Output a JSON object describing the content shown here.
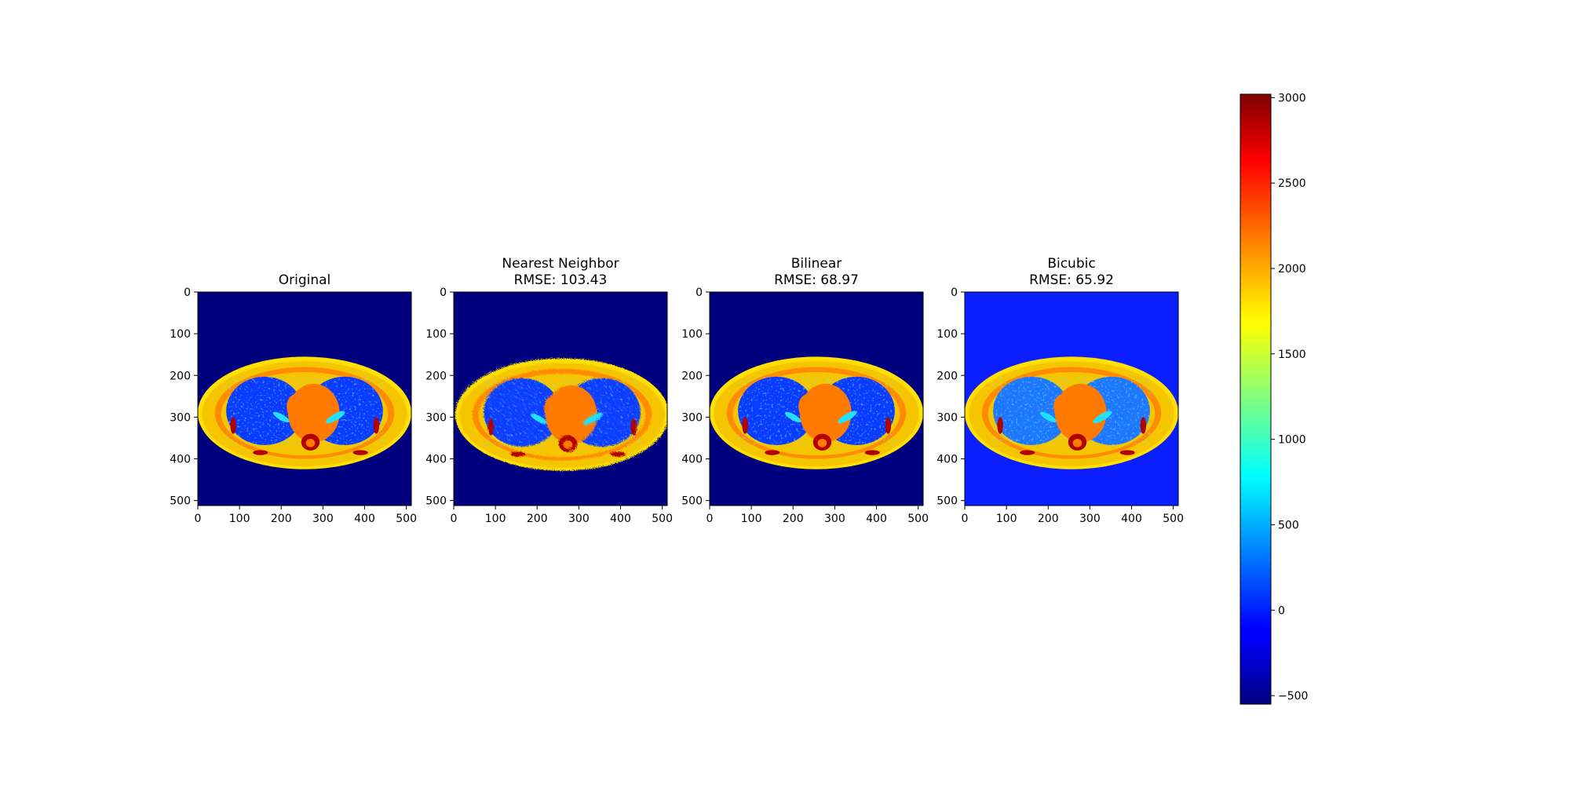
{
  "chart_data": [
    {
      "type": "heatmap",
      "panel": "original",
      "title": [
        "Original"
      ],
      "xticks": [
        0,
        100,
        200,
        300,
        400,
        500
      ],
      "yticks": [
        0,
        100,
        200,
        300,
        400,
        500
      ],
      "xlim": [
        0,
        512
      ],
      "ylim": [
        512,
        0
      ],
      "background_color": "#00007f",
      "edge_style": "smooth",
      "colormap": "jet"
    },
    {
      "type": "heatmap",
      "panel": "nearest",
      "title": [
        "Nearest Neighbor",
        "RMSE: 103.43"
      ],
      "rmse": 103.43,
      "xticks": [
        0,
        100,
        200,
        300,
        400,
        500
      ],
      "yticks": [
        0,
        100,
        200,
        300,
        400,
        500
      ],
      "xlim": [
        0,
        512
      ],
      "ylim": [
        512,
        0
      ],
      "background_color": "#00007f",
      "edge_style": "jagged",
      "colormap": "jet"
    },
    {
      "type": "heatmap",
      "panel": "bilinear",
      "title": [
        "Bilinear",
        "RMSE: 68.97"
      ],
      "rmse": 68.97,
      "xticks": [
        0,
        100,
        200,
        300,
        400,
        500
      ],
      "yticks": [
        0,
        100,
        200,
        300,
        400,
        500
      ],
      "xlim": [
        0,
        512
      ],
      "ylim": [
        512,
        0
      ],
      "background_color": "#00007f",
      "edge_style": "smooth",
      "colormap": "jet"
    },
    {
      "type": "heatmap",
      "panel": "bicubic",
      "title": [
        "Bicubic",
        "RMSE: 65.92"
      ],
      "rmse": 65.92,
      "xticks": [
        0,
        100,
        200,
        300,
        400,
        500
      ],
      "yticks": [
        0,
        100,
        200,
        300,
        400,
        500
      ],
      "xlim": [
        0,
        512
      ],
      "ylim": [
        512,
        0
      ],
      "background_color": "#0a1eff",
      "edge_style": "smooth",
      "colormap": "jet"
    }
  ],
  "colorbar": {
    "colormap": "jet",
    "range": [
      -550,
      3020
    ],
    "ticks": [
      -500,
      0,
      500,
      1000,
      1500,
      2000,
      2500,
      3000
    ],
    "tick_labels": [
      "−500",
      "0",
      "500",
      "1000",
      "1500",
      "2000",
      "2500",
      "3000"
    ]
  },
  "colors": {
    "body_outer": "#f5c600",
    "body_rim": "#ffe000",
    "muscle": "#ff8c00",
    "lung": "#0a3cff",
    "lung_speckle": "#2ec8ff",
    "mediastinum": "#ff7a00",
    "bone": "#b00000",
    "vessel": "#22e0ff"
  }
}
